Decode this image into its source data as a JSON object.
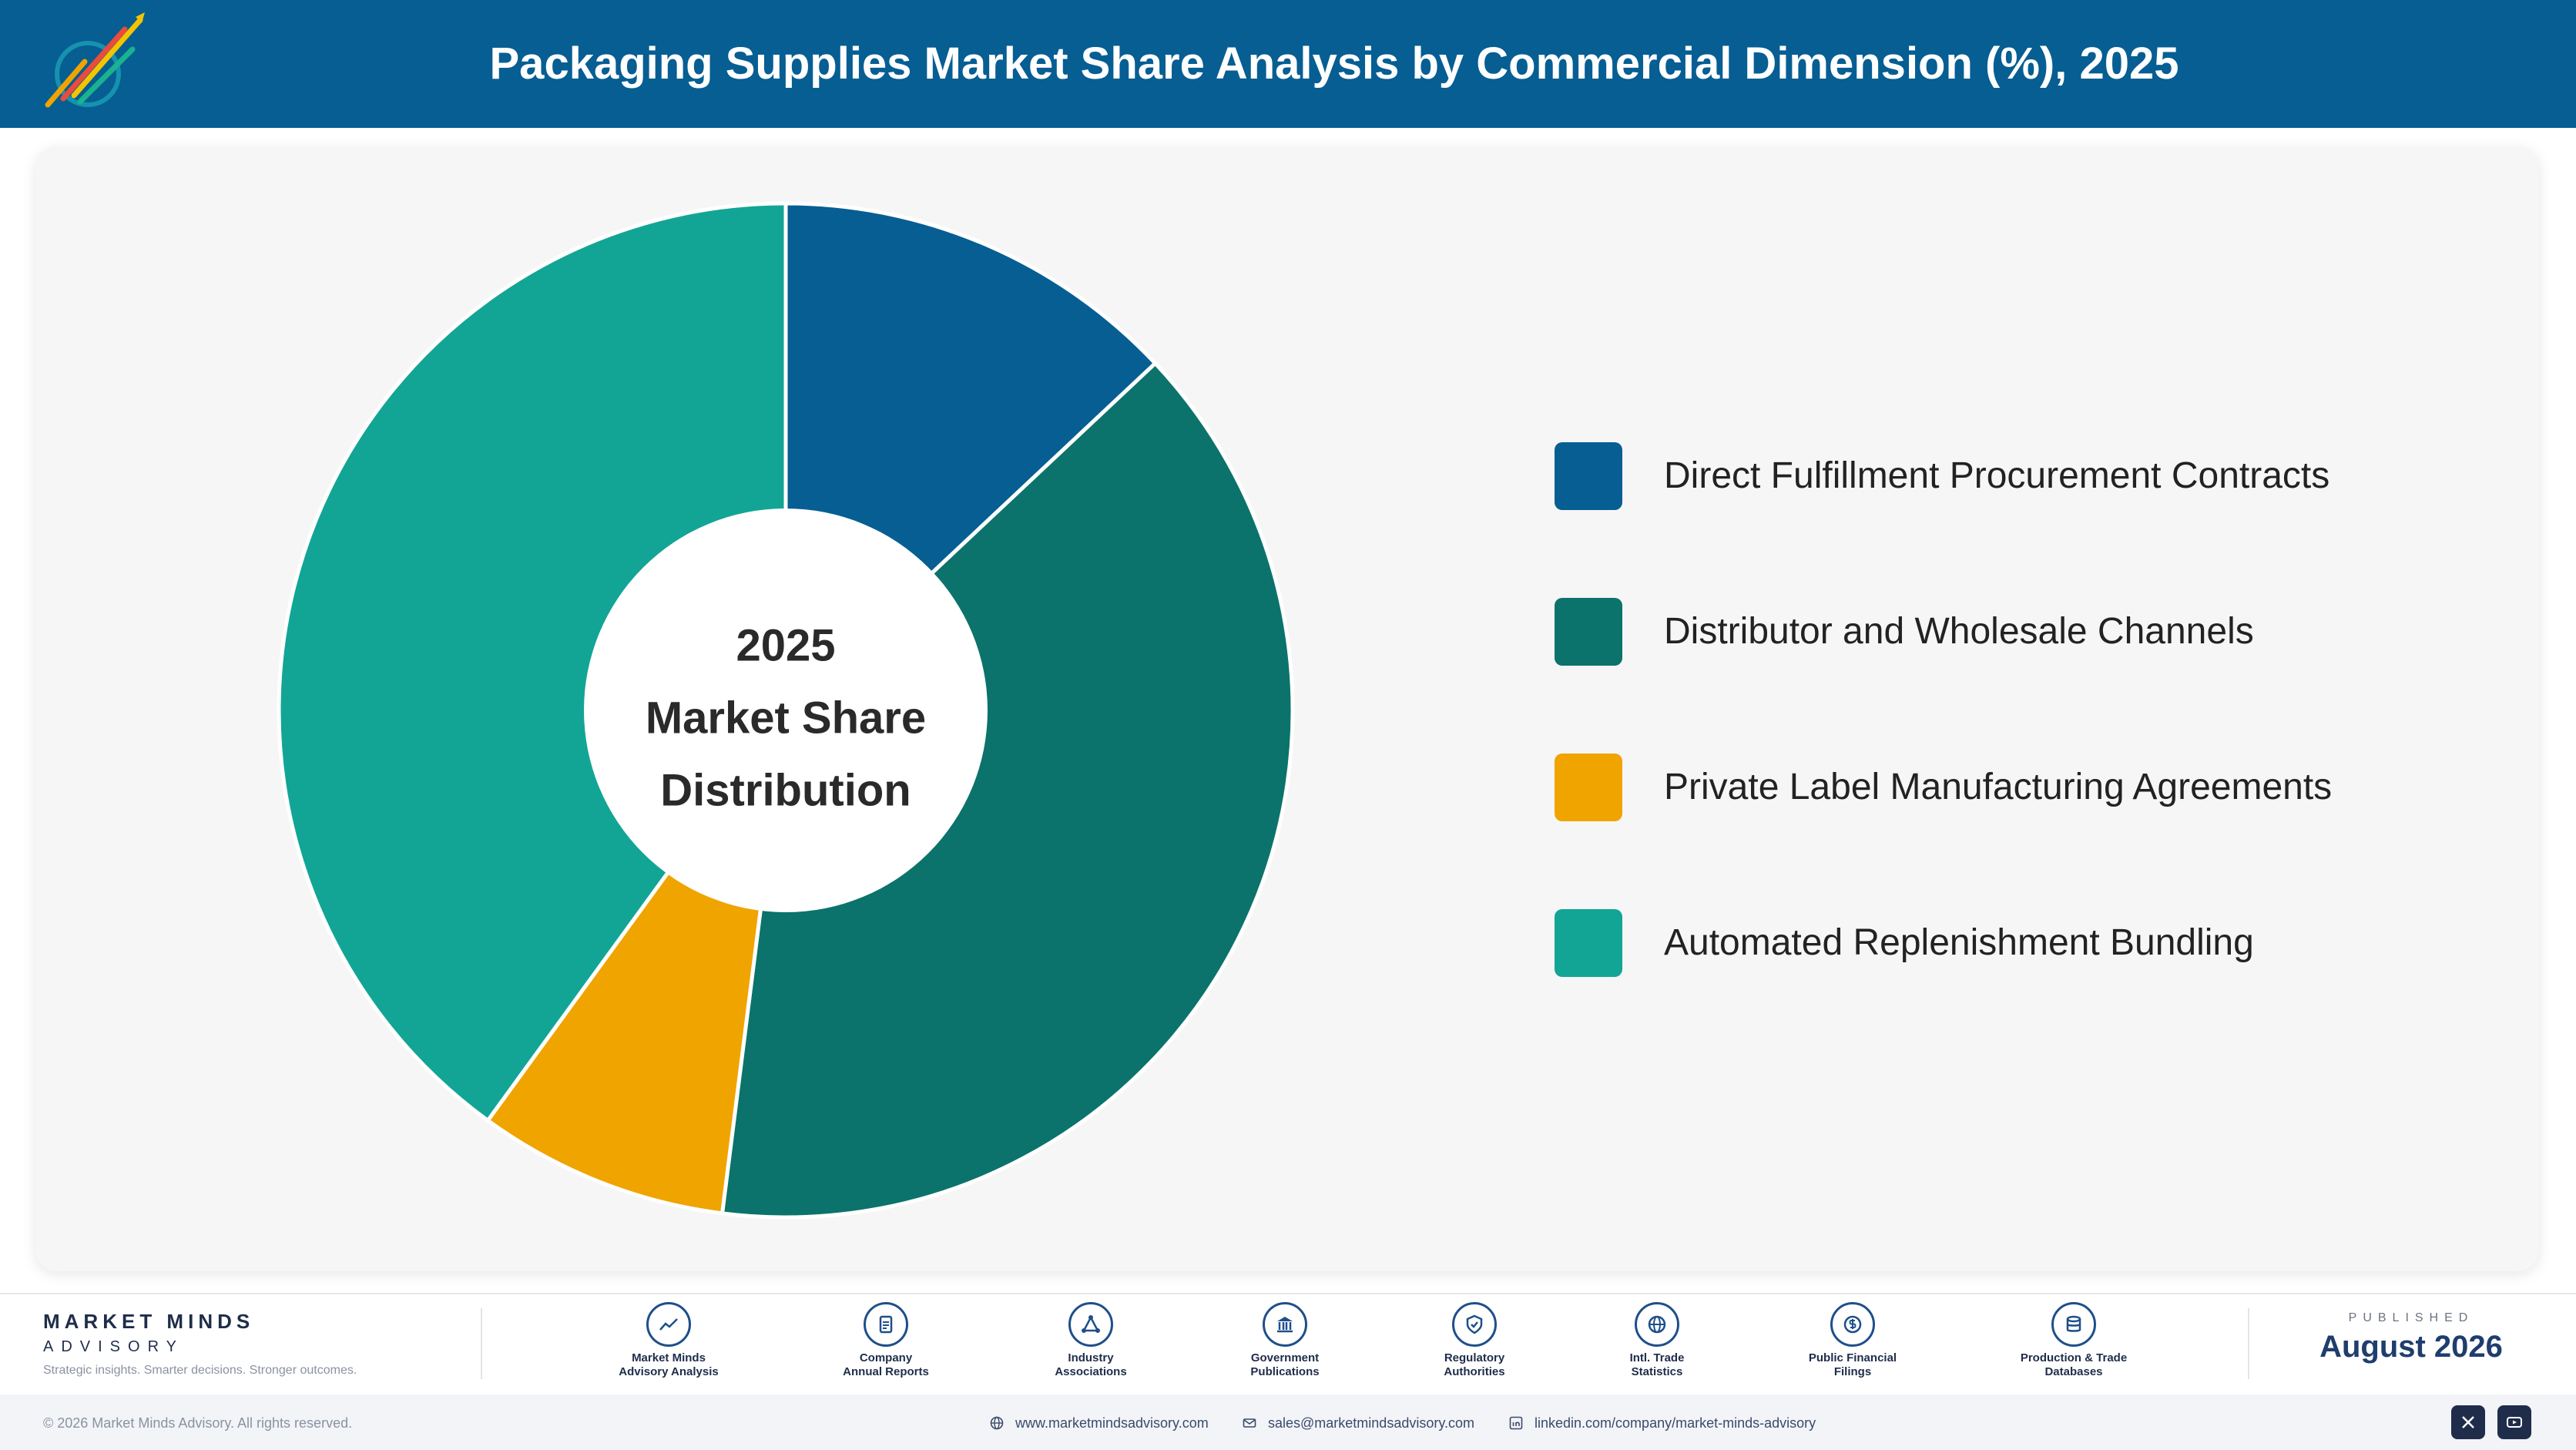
{
  "header": {
    "title": "Packaging Supplies Market Share Analysis by Commercial Dimension (%), 2025"
  },
  "chart_data": {
    "type": "pie",
    "style": "donut",
    "title": "Packaging Supplies Market Share Analysis by Commercial Dimension (%), 2025",
    "center_text": [
      "2025",
      "Market Share",
      "Distribution"
    ],
    "categories": [
      "Direct Fulfillment Procurement Contracts",
      "Distributor and Wholesale Channels",
      "Private Label Manufacturing Agreements",
      "Automated Replenishment Bundling"
    ],
    "values": [
      13,
      39,
      8,
      40
    ],
    "colors": [
      "#065e93",
      "#0b736b",
      "#f0a400",
      "#12a595"
    ],
    "legend_position": "right"
  },
  "footer": {
    "brand_name": "MARKET MINDS",
    "brand_sub": "ADVISORY",
    "tagline": "Strategic insights. Smarter decisions. Stronger outcomes.",
    "sources": [
      {
        "label": "Market Minds\nAdvisory Analysis",
        "icon": "trend-icon"
      },
      {
        "label": "Company\nAnnual Reports",
        "icon": "document-icon"
      },
      {
        "label": "Industry\nAssociations",
        "icon": "network-icon"
      },
      {
        "label": "Government\nPublications",
        "icon": "building-icon"
      },
      {
        "label": "Regulatory\nAuthorities",
        "icon": "shield-icon"
      },
      {
        "label": "Intl. Trade\nStatistics",
        "icon": "globe-icon"
      },
      {
        "label": "Public Financial\nFilings",
        "icon": "dollar-icon"
      },
      {
        "label": "Production & Trade\nDatabases",
        "icon": "database-icon"
      }
    ],
    "published_label": "PUBLISHED",
    "published_date": "August 2026",
    "copyright": "© 2026 Market Minds Advisory. All rights reserved.",
    "website": "www.marketmindsadvisory.com",
    "email": "sales@marketmindsadvisory.com",
    "linkedin": "linkedin.com/company/market-minds-advisory"
  }
}
